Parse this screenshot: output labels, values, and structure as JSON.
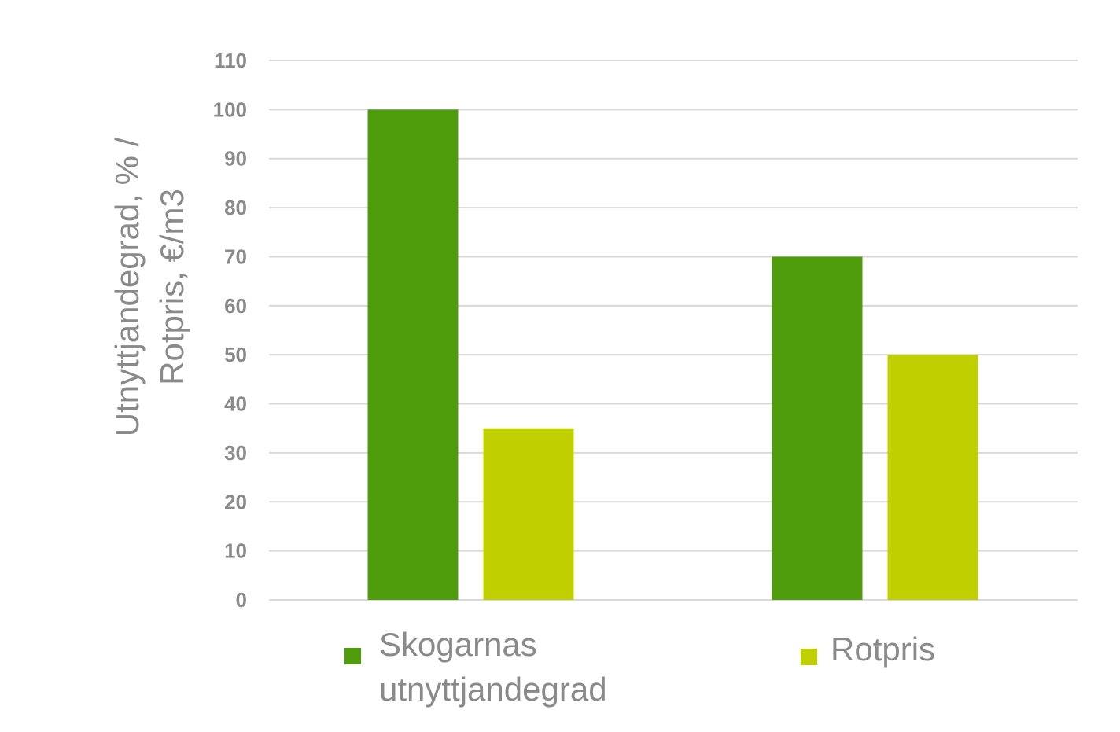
{
  "chart_data": {
    "type": "bar",
    "categories": [
      "",
      ""
    ],
    "series": [
      {
        "name": "Skogarnas utnyttjandegrad",
        "values": [
          100,
          70
        ]
      },
      {
        "name": "Rotpris",
        "values": [
          35,
          50
        ]
      }
    ],
    "ylabel": "Utnyttjandegrad, % / Rotpris, €/m3",
    "ylabel_lines": [
      "Utnyttjandegrad, % /",
      "Rotpris, €/m3"
    ],
    "ylim": [
      0,
      110
    ],
    "yticks": [
      "0",
      "10",
      "20",
      "30",
      "40",
      "50",
      "60",
      "70",
      "80",
      "90",
      "100",
      "110"
    ],
    "grid": true,
    "legend_position": "bottom",
    "legend": [
      {
        "lines": [
          "Skogarnas",
          "utnyttjandegrad"
        ],
        "series_index": 0
      },
      {
        "lines": [
          "Rotpris"
        ],
        "series_index": 1
      }
    ]
  },
  "colors": {
    "series": [
      "#4f9c0d",
      "#bfcf00"
    ],
    "text": "#8a8a8a",
    "grid": "#d9d9d9"
  }
}
